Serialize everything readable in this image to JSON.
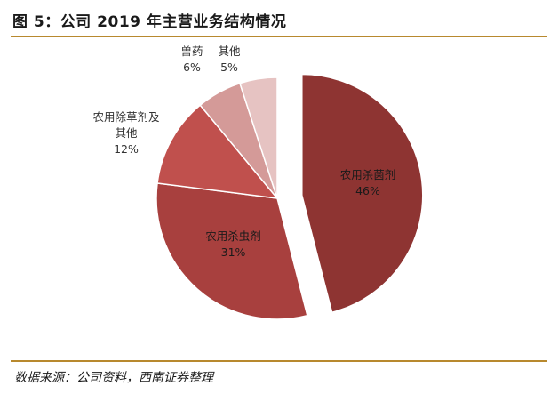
{
  "header": {
    "title": "图 5：公司 2019 年主营业务结构情况"
  },
  "footer": {
    "source": "数据来源：公司资料，西南证券整理"
  },
  "chart_data": {
    "type": "pie",
    "slices": [
      {
        "name": "农用杀菌剂",
        "value": 46,
        "label": "46%",
        "color": "#8e3432",
        "exploded": true,
        "label_inside": true,
        "text_color": "#1a1a1a"
      },
      {
        "name": "农用杀虫剂",
        "value": 31,
        "label": "31%",
        "color": "#a8403e",
        "exploded": false,
        "label_inside": true,
        "text_color": "#1a1a1a"
      },
      {
        "name": "农用除草剂及其他",
        "name_lines": [
          "农用除草剂及",
          "其他"
        ],
        "value": 12,
        "label": "12%",
        "color": "#c0504d",
        "exploded": false,
        "label_inside": false,
        "text_color": "#333333"
      },
      {
        "name": "兽药",
        "value": 6,
        "label": "6%",
        "color": "#d49a98",
        "exploded": false,
        "label_inside": false,
        "text_color": "#333333"
      },
      {
        "name": "其他",
        "value": 5,
        "label": "5%",
        "color": "#e6c3c2",
        "exploded": false,
        "label_inside": false,
        "text_color": "#333333"
      }
    ]
  }
}
